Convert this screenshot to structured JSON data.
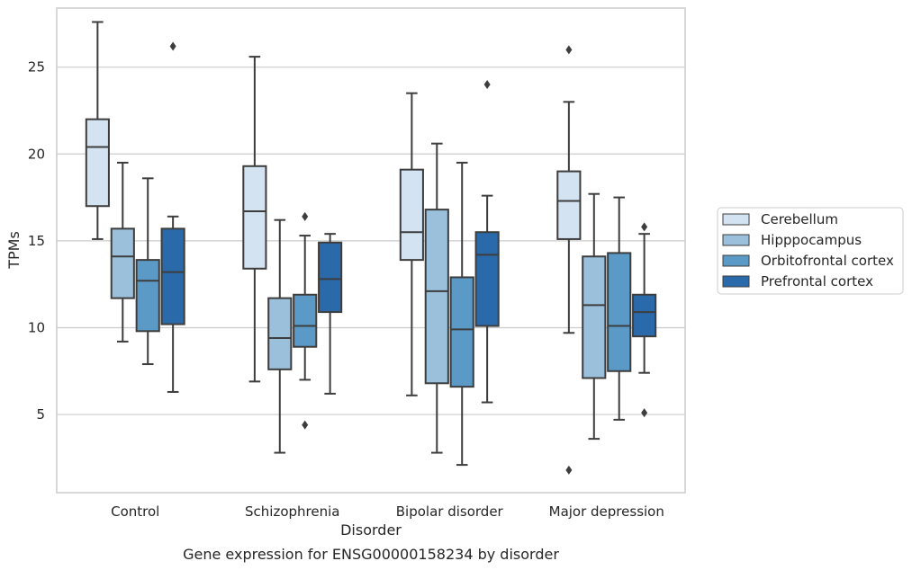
{
  "chart_data": {
    "type": "box",
    "title": "",
    "caption": "Gene expression for ENSG00000158234 by disorder",
    "xlabel": "Disorder",
    "ylabel": "TPMs",
    "ylim": [
      0.5,
      28.4
    ],
    "yticks": [
      5,
      10,
      15,
      20,
      25
    ],
    "grid": "horizontal",
    "legend_position": "right",
    "categories": [
      "Control",
      "Schizophrenia",
      "Bipolar disorder",
      "Major depression"
    ],
    "series": [
      {
        "name": "Cerebellum",
        "color": "#d3e3f2",
        "boxes": [
          {
            "whislo": 15.1,
            "q1": 17.0,
            "med": 20.4,
            "q3": 22.0,
            "whishi": 27.6,
            "fliers": []
          },
          {
            "whislo": 6.9,
            "q1": 13.4,
            "med": 16.7,
            "q3": 19.3,
            "whishi": 25.6,
            "fliers": []
          },
          {
            "whislo": 6.1,
            "q1": 13.9,
            "med": 15.5,
            "q3": 19.1,
            "whishi": 23.5,
            "fliers": []
          },
          {
            "whislo": 9.7,
            "q1": 15.1,
            "med": 17.3,
            "q3": 19.0,
            "whishi": 23.0,
            "fliers": [
              1.8,
              26.0
            ]
          }
        ]
      },
      {
        "name": "Hipppocampus",
        "color": "#9ac0db",
        "boxes": [
          {
            "whislo": 9.2,
            "q1": 11.7,
            "med": 14.1,
            "q3": 15.7,
            "whishi": 19.5,
            "fliers": []
          },
          {
            "whislo": 2.8,
            "q1": 7.6,
            "med": 9.4,
            "q3": 11.7,
            "whishi": 16.2,
            "fliers": []
          },
          {
            "whislo": 2.8,
            "q1": 6.8,
            "med": 12.1,
            "q3": 16.8,
            "whishi": 20.6,
            "fliers": []
          },
          {
            "whislo": 3.6,
            "q1": 7.1,
            "med": 11.3,
            "q3": 14.1,
            "whishi": 17.7,
            "fliers": []
          }
        ]
      },
      {
        "name": "Orbitofrontal cortex",
        "color": "#5b9ac7",
        "boxes": [
          {
            "whislo": 7.9,
            "q1": 9.8,
            "med": 12.7,
            "q3": 13.9,
            "whishi": 18.6,
            "fliers": []
          },
          {
            "whislo": 7.0,
            "q1": 8.9,
            "med": 10.1,
            "q3": 11.9,
            "whishi": 15.3,
            "fliers": [
              4.4,
              16.4
            ]
          },
          {
            "whislo": 2.1,
            "q1": 6.6,
            "med": 9.9,
            "q3": 12.9,
            "whishi": 19.5,
            "fliers": []
          },
          {
            "whislo": 4.7,
            "q1": 7.5,
            "med": 10.1,
            "q3": 14.3,
            "whishi": 17.5,
            "fliers": []
          }
        ]
      },
      {
        "name": "Prefrontal cortex",
        "color": "#2a69aa",
        "boxes": [
          {
            "whislo": 6.3,
            "q1": 10.2,
            "med": 13.2,
            "q3": 15.7,
            "whishi": 16.4,
            "fliers": [
              26.2
            ]
          },
          {
            "whislo": 6.2,
            "q1": 10.9,
            "med": 12.8,
            "q3": 14.9,
            "whishi": 15.4,
            "fliers": []
          },
          {
            "whislo": 5.7,
            "q1": 10.1,
            "med": 14.2,
            "q3": 15.5,
            "whishi": 17.6,
            "fliers": [
              24.0
            ]
          },
          {
            "whislo": 7.4,
            "q1": 9.5,
            "med": 10.9,
            "q3": 11.9,
            "whishi": 15.4,
            "fliers": [
              5.1,
              15.8
            ]
          }
        ]
      }
    ]
  }
}
